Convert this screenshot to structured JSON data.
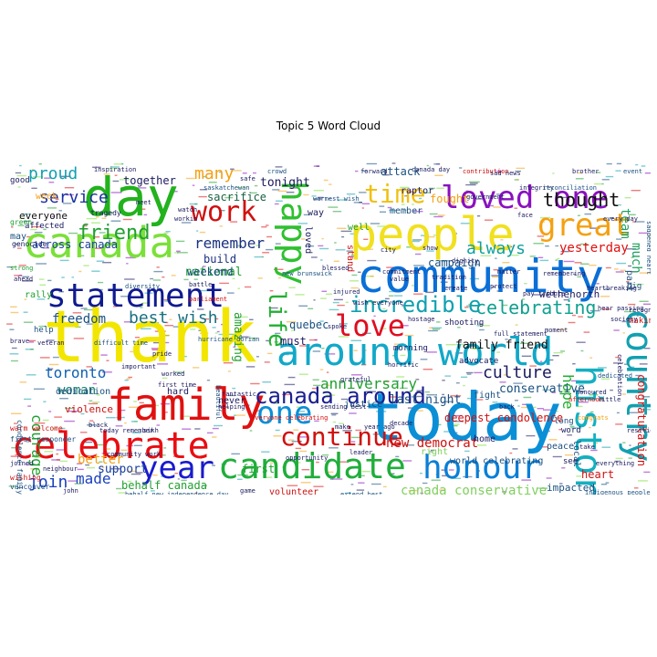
{
  "chart_data": {
    "type": "wordcloud",
    "title": "Topic 5 Word Cloud",
    "words": [
      {
        "text": "thank",
        "weight": 1.0,
        "color": "#f2e600"
      },
      {
        "text": "today",
        "weight": 0.96,
        "color": "#0a8fd6"
      },
      {
        "text": "community",
        "weight": 0.82,
        "color": "#0a6fd6"
      },
      {
        "text": "day",
        "weight": 0.78,
        "color": "#22b21d"
      },
      {
        "text": "canada",
        "weight": 0.76,
        "color": "#7be03a"
      },
      {
        "text": "people",
        "weight": 0.74,
        "color": "#f0e020"
      },
      {
        "text": "around world",
        "weight": 0.7,
        "color": "#12a8c8"
      },
      {
        "text": "family",
        "weight": 0.66,
        "color": "#e01010"
      },
      {
        "text": "celebrate",
        "weight": 0.64,
        "color": "#e80d12"
      },
      {
        "text": "statement",
        "weight": 0.58,
        "color": "#101a8f"
      },
      {
        "text": "candidate",
        "weight": 0.56,
        "color": "#1fae3a"
      },
      {
        "text": "honour",
        "weight": 0.54,
        "color": "#0a7fd6"
      },
      {
        "text": "country",
        "weight": 0.52,
        "color": "#12a0b0"
      },
      {
        "text": "history",
        "weight": 0.5,
        "color": "#13b0c0"
      },
      {
        "text": "happy",
        "weight": 0.5,
        "color": "#2fc030"
      },
      {
        "text": "loved one",
        "weight": 0.5,
        "color": "#8a10c0"
      },
      {
        "text": "year",
        "weight": 0.48,
        "color": "#1a1ad0"
      },
      {
        "text": "great",
        "weight": 0.48,
        "color": "#f5a010"
      },
      {
        "text": "work",
        "weight": 0.46,
        "color": "#d01010"
      },
      {
        "text": "one",
        "weight": 0.44,
        "color": "#0a8fd6"
      },
      {
        "text": "love",
        "weight": 0.42,
        "color": "#e00d20"
      },
      {
        "text": "continue",
        "weight": 0.4,
        "color": "#d01010"
      },
      {
        "text": "time",
        "weight": 0.4,
        "color": "#f0c010"
      },
      {
        "text": "canada around",
        "weight": 0.38,
        "color": "#1a2090"
      },
      {
        "text": "life",
        "weight": 0.36,
        "color": "#20b030"
      },
      {
        "text": "friend",
        "weight": 0.33,
        "color": "#20a030"
      },
      {
        "text": "celebrating",
        "weight": 0.33,
        "color": "#10a090"
      },
      {
        "text": "incredible",
        "weight": 0.33,
        "color": "#10a0b0"
      },
      {
        "text": "thought",
        "weight": 0.32,
        "color": "#101010"
      },
      {
        "text": "always",
        "weight": 0.31,
        "color": "#10a0a0"
      },
      {
        "text": "service",
        "weight": 0.3,
        "color": "#1a30a0"
      },
      {
        "text": "proud",
        "weight": 0.29,
        "color": "#10a0b0"
      },
      {
        "text": "many",
        "weight": 0.29,
        "color": "#f5a010"
      },
      {
        "text": "culture",
        "weight": 0.28,
        "color": "#1a1a60"
      },
      {
        "text": "join",
        "weight": 0.28,
        "color": "#1a40c0"
      },
      {
        "text": "remember",
        "weight": 0.27,
        "color": "#1a3080"
      },
      {
        "text": "best wish",
        "weight": 0.27,
        "color": "#1a7080"
      },
      {
        "text": "courage",
        "weight": 0.26,
        "color": "#20a030"
      },
      {
        "text": "anniversary",
        "weight": 0.26,
        "color": "#20a030"
      },
      {
        "text": "toronto",
        "weight": 0.25,
        "color": "#1060b0"
      },
      {
        "text": "made",
        "weight": 0.25,
        "color": "#1a40c0"
      },
      {
        "text": "hope",
        "weight": 0.25,
        "color": "#20b030"
      },
      {
        "text": "better",
        "weight": 0.24,
        "color": "#f5a010"
      },
      {
        "text": "woman",
        "weight": 0.24,
        "color": "#1a8070"
      },
      {
        "text": "team",
        "weight": 0.24,
        "color": "#20a060"
      },
      {
        "text": "yesterday",
        "weight": 0.23,
        "color": "#e01010"
      },
      {
        "text": "much",
        "weight": 0.23,
        "color": "#20a060"
      },
      {
        "text": "canada conservative",
        "weight": 0.23,
        "color": "#80d060"
      },
      {
        "text": "new democrat",
        "weight": 0.22,
        "color": "#d01010"
      },
      {
        "text": "family friend",
        "weight": 0.22,
        "color": "#101010"
      },
      {
        "text": "national",
        "weight": 0.22,
        "color": "#20a030"
      },
      {
        "text": "amazing",
        "weight": 0.21,
        "color": "#20a030"
      },
      {
        "text": "freedom",
        "weight": 0.21,
        "color": "#1a5080"
      },
      {
        "text": "tonight",
        "weight": 0.21,
        "color": "#1a1a60"
      },
      {
        "text": "together",
        "weight": 0.2,
        "color": "#1a1a60"
      },
      {
        "text": "sacrifice",
        "weight": 0.2,
        "color": "#1a6040"
      },
      {
        "text": "across canada",
        "weight": 0.2,
        "color": "#1a40a0"
      },
      {
        "text": "weekend",
        "weight": 0.19,
        "color": "#1a5080"
      },
      {
        "text": "support",
        "weight": 0.19,
        "color": "#1a40a0"
      },
      {
        "text": "conservative",
        "weight": 0.19,
        "color": "#1a5080"
      },
      {
        "text": "last night",
        "weight": 0.19,
        "color": "#1a5080"
      },
      {
        "text": "deepest condolence",
        "weight": 0.18,
        "color": "#d01010"
      },
      {
        "text": "congratulation",
        "weight": 0.18,
        "color": "#d01010"
      },
      {
        "text": "campaign",
        "weight": 0.18,
        "color": "#1a5080"
      },
      {
        "text": "quebec",
        "weight": 0.18,
        "color": "#1a5080"
      },
      {
        "text": "must",
        "weight": 0.18,
        "color": "#1a1a60"
      },
      {
        "text": "fought",
        "weight": 0.18,
        "color": "#f5a010"
      },
      {
        "text": "attack",
        "weight": 0.18,
        "color": "#1a5080"
      },
      {
        "text": "behalf canada",
        "weight": 0.17,
        "color": "#20a030"
      },
      {
        "text": "heart",
        "weight": 0.17,
        "color": "#d01010"
      },
      {
        "text": "first",
        "weight": 0.17,
        "color": "#20a030"
      },
      {
        "text": "build",
        "weight": 0.17,
        "color": "#1a3080"
      },
      {
        "text": "wethenorth",
        "weight": 0.16,
        "color": "#1a1a60"
      },
      {
        "text": "impacted",
        "weight": 0.16,
        "color": "#1a5080"
      },
      {
        "text": "volunteer",
        "weight": 0.15,
        "color": "#d01010"
      },
      {
        "text": "everyone",
        "weight": 0.15,
        "color": "#101010"
      },
      {
        "text": "violence",
        "weight": 0.15,
        "color": "#d01010"
      },
      {
        "text": "dedication",
        "weight": 0.15,
        "color": "#1a5080"
      },
      {
        "text": "justice",
        "weight": 0.15,
        "color": "#1a5080"
      },
      {
        "text": "member",
        "weight": 0.15,
        "color": "#1a5080"
      },
      {
        "text": "fight",
        "weight": 0.15,
        "color": "#1a5080"
      },
      {
        "text": "world celebrating",
        "weight": 0.14,
        "color": "#1a5080"
      },
      {
        "text": "stand",
        "weight": 0.14,
        "color": "#d01010"
      },
      {
        "text": "well",
        "weight": 0.14,
        "color": "#20a030"
      },
      {
        "text": "raptor",
        "weight": 0.14,
        "color": "#1a1a60"
      },
      {
        "text": "loved",
        "weight": 0.14,
        "color": "#1a1a60"
      },
      {
        "text": "way",
        "weight": 0.14,
        "color": "#1a1a60"
      },
      {
        "text": "hard",
        "weight": 0.14,
        "color": "#1a1a60"
      },
      {
        "text": "never",
        "weight": 0.14,
        "color": "#1a1a60"
      },
      {
        "text": "home",
        "weight": 0.14,
        "color": "#1a1a60"
      },
      {
        "text": "right",
        "weight": 0.14,
        "color": "#80d060"
      },
      {
        "text": "local",
        "weight": 0.14,
        "color": "#1a5080"
      },
      {
        "text": "peace",
        "weight": 0.13,
        "color": "#1a5080"
      },
      {
        "text": "week",
        "weight": 0.13,
        "color": "#f5a010"
      },
      {
        "text": "affected",
        "weight": 0.13,
        "color": "#1a1a60"
      },
      {
        "text": "good",
        "weight": 0.13,
        "color": "#1a1a60"
      },
      {
        "text": "may",
        "weight": 0.13,
        "color": "#1a5080"
      },
      {
        "text": "rally",
        "weight": 0.13,
        "color": "#20a030"
      },
      {
        "text": "help",
        "weight": 0.12,
        "color": "#1a5080"
      },
      {
        "text": "making",
        "weight": 0.12,
        "color": "#d01010"
      },
      {
        "text": "part",
        "weight": 0.12,
        "color": "#1a5080"
      },
      {
        "text": "big",
        "weight": 0.12,
        "color": "#1a5080"
      },
      {
        "text": "see",
        "weight": 0.12,
        "color": "#1a1a60"
      },
      {
        "text": "word",
        "weight": 0.12,
        "color": "#1a1a60"
      },
      {
        "text": "long",
        "weight": 0.12,
        "color": "#1a5080"
      },
      {
        "text": "shooting",
        "weight": 0.12,
        "color": "#1a1a60"
      },
      {
        "text": "morning",
        "weight": 0.12,
        "color": "#1a1a60"
      },
      {
        "text": "advocate",
        "weight": 0.12,
        "color": "#1a1a60"
      },
      {
        "text": "tragedy",
        "weight": 0.12,
        "color": "#1a1a60"
      },
      {
        "text": "green",
        "weight": 0.12,
        "color": "#20a030"
      },
      {
        "text": "genocide",
        "weight": 0.12,
        "color": "#1a1a60"
      },
      {
        "text": "vancouver",
        "weight": 0.12,
        "color": "#1a5080"
      },
      {
        "text": "wishing",
        "weight": 0.12,
        "color": "#d01010"
      },
      {
        "text": "first responder",
        "weight": 0.12,
        "color": "#1a5080"
      },
      {
        "text": "warm welcome",
        "weight": 0.12,
        "color": "#d01010"
      },
      {
        "text": "condolence family",
        "weight": 0.12,
        "color": "#1a5080"
      },
      {
        "text": "independence day",
        "weight": 0.11,
        "color": "#1a5080"
      },
      {
        "text": "extend best",
        "weight": 0.11,
        "color": "#1a5080"
      },
      {
        "text": "everyone celebrating",
        "weight": 0.11,
        "color": "#d01010"
      },
      {
        "text": "difficult time",
        "weight": 0.11,
        "color": "#1a5080"
      },
      {
        "text": "important",
        "weight": 0.11,
        "color": "#1a1a60"
      },
      {
        "text": "beautiful",
        "weight": 0.11,
        "color": "#1a5080"
      },
      {
        "text": "leader",
        "weight": 0.11,
        "color": "#1a1a60"
      },
      {
        "text": "opportunity",
        "weight": 0.11,
        "color": "#1a1a60"
      },
      {
        "text": "sending best",
        "weight": 0.11,
        "color": "#1a1a60"
      },
      {
        "text": "dedicated",
        "weight": 0.11,
        "color": "#1a5080"
      },
      {
        "text": "hear passing",
        "weight": 0.11,
        "color": "#1a1a60"
      },
      {
        "text": "recognize",
        "weight": 0.11,
        "color": "#1a1a60"
      },
      {
        "text": "protect",
        "weight": 0.11,
        "color": "#1a1a60"
      },
      {
        "text": "pay tribute",
        "weight": 0.11,
        "color": "#1a1a60"
      },
      {
        "text": "integrity",
        "weight": 0.11,
        "color": "#1a1a60"
      },
      {
        "text": "contribution",
        "weight": 0.11,
        "color": "#d01010"
      },
      {
        "text": "reconciliation",
        "weight": 0.11,
        "color": "#1a5080"
      },
      {
        "text": "event",
        "weight": 0.11,
        "color": "#1a5080"
      },
      {
        "text": "crowd",
        "weight": 0.11,
        "color": "#1a5080"
      },
      {
        "text": "parliament",
        "weight": 0.11,
        "color": "#d01010"
      },
      {
        "text": "warmest wish",
        "weight": 0.11,
        "color": "#1a5080"
      },
      {
        "text": "new brunswick",
        "weight": 0.11,
        "color": "#1a5080"
      },
      {
        "text": "wish everyone",
        "weight": 0.11,
        "color": "#1a1a60"
      },
      {
        "text": "inspiration",
        "weight": 0.1,
        "color": "#1a1a60"
      },
      {
        "text": "saskatchewan",
        "weight": 0.1,
        "color": "#1a5080"
      },
      {
        "text": "diversity",
        "weight": 0.1,
        "color": "#1a5080"
      },
      {
        "text": "battle",
        "weight": 0.1,
        "color": "#1a1a60"
      },
      {
        "text": "hurricane dorian",
        "weight": 0.1,
        "color": "#1a5080"
      },
      {
        "text": "brave",
        "weight": 0.1,
        "color": "#1a1a60"
      },
      {
        "text": "joined",
        "weight": 0.1,
        "color": "#1a1a60"
      },
      {
        "text": "neighbour",
        "weight": 0.1,
        "color": "#1a1a60"
      },
      {
        "text": "john",
        "weight": 0.1,
        "color": "#1a1a60"
      },
      {
        "text": "behalf new",
        "weight": 0.1,
        "color": "#1a5080"
      },
      {
        "text": "game",
        "weight": 0.1,
        "color": "#1a1a60"
      },
      {
        "text": "decade",
        "weight": 0.1,
        "color": "#1a1a60"
      },
      {
        "text": "year ago",
        "weight": 0.1,
        "color": "#1a1a60"
      },
      {
        "text": "make",
        "weight": 0.1,
        "color": "#1a1a60"
      },
      {
        "text": "value",
        "weight": 0.1,
        "color": "#1a1a60"
      },
      {
        "text": "city",
        "weight": 0.1,
        "color": "#1a1a60"
      },
      {
        "text": "show",
        "weight": 0.1,
        "color": "#1a1a60"
      },
      {
        "text": "face",
        "weight": 0.1,
        "color": "#1a1a60"
      },
      {
        "text": "indigenous people",
        "weight": 0.1,
        "color": "#1a5080"
      },
      {
        "text": "congrats",
        "weight": 0.1,
        "color": "#f5a010"
      },
      {
        "text": "afternoon",
        "weight": 0.1,
        "color": "#d01010"
      },
      {
        "text": "everything",
        "weight": 0.1,
        "color": "#1a1a60"
      },
      {
        "text": "take",
        "weight": 0.1,
        "color": "#1a1a60"
      },
      {
        "text": "saddened heart",
        "weight": 0.1,
        "color": "#1a5080"
      },
      {
        "text": "every day",
        "weight": 0.1,
        "color": "#1a1a60"
      },
      {
        "text": "moment",
        "weight": 0.1,
        "color": "#1a1a60"
      },
      {
        "text": "watch",
        "weight": 0.1,
        "color": "#1a1a60"
      },
      {
        "text": "workin",
        "weight": 0.1,
        "color": "#1a1a60"
      },
      {
        "text": "injured",
        "weight": 0.1,
        "color": "#1a1a60"
      },
      {
        "text": "full statement",
        "weight": 0.1,
        "color": "#1a1a60"
      },
      {
        "text": "today remember",
        "weight": 0.1,
        "color": "#1a1a60"
      },
      {
        "text": "veteran",
        "weight": 0.1,
        "color": "#1a1a60"
      },
      {
        "text": "black",
        "weight": 0.1,
        "color": "#1a1a60"
      },
      {
        "text": "community work",
        "weight": 0.1,
        "color": "#1a1a60"
      },
      {
        "text": "sikh",
        "weight": 0.1,
        "color": "#1a1a60"
      },
      {
        "text": "dignity",
        "weight": 0.1,
        "color": "#1a1a60"
      },
      {
        "text": "government",
        "weight": 0.1,
        "color": "#1a1a60"
      },
      {
        "text": "resilience",
        "weight": 0.1,
        "color": "#1a1a60"
      },
      {
        "text": "society",
        "weight": 0.1,
        "color": "#1a1a60"
      },
      {
        "text": "grateful",
        "weight": 0.1,
        "color": "#1a1a60"
      },
      {
        "text": "commitment",
        "weight": 0.1,
        "color": "#1a1a60"
      },
      {
        "text": "spoke",
        "weight": 0.1,
        "color": "#1a1a60"
      },
      {
        "text": "hostage",
        "weight": 0.1,
        "color": "#1a1a60"
      },
      {
        "text": "tradition",
        "weight": 0.1,
        "color": "#1a1a60"
      },
      {
        "text": "sad news",
        "weight": 0.1,
        "color": "#1a1a60"
      },
      {
        "text": "ahead",
        "weight": 0.1,
        "color": "#1a1a60"
      },
      {
        "text": "worked",
        "weight": 0.1,
        "color": "#1a1a60"
      },
      {
        "text": "celebration",
        "weight": 0.1,
        "color": "#1a1a60"
      },
      {
        "text": "pride",
        "weight": 0.1,
        "color": "#1a1a60"
      },
      {
        "text": "fantastic",
        "weight": 0.1,
        "color": "#1a1a60"
      },
      {
        "text": "first time",
        "weight": 0.1,
        "color": "#1a1a60"
      },
      {
        "text": "blessed",
        "weight": 0.1,
        "color": "#1a1a60"
      },
      {
        "text": "horrific",
        "weight": 0.1,
        "color": "#1a1a60"
      },
      {
        "text": "strong",
        "weight": 0.1,
        "color": "#20a030"
      },
      {
        "text": "meet",
        "weight": 0.1,
        "color": "#1a1a60"
      },
      {
        "text": "safe",
        "weight": 0.1,
        "color": "#1a1a60"
      },
      {
        "text": "forward",
        "weight": 0.1,
        "color": "#1a1a60"
      },
      {
        "text": "matter",
        "weight": 0.1,
        "color": "#1a1a60"
      },
      {
        "text": "helping",
        "weight": 0.1,
        "color": "#1a1a60"
      },
      {
        "text": "create",
        "weight": 0.1,
        "color": "#1a1a60"
      },
      {
        "text": "little",
        "weight": 0.1,
        "color": "#1a1a60"
      },
      {
        "text": "back",
        "weight": 0.1,
        "color": "#1a1a60"
      },
      {
        "text": "remembering",
        "weight": 0.1,
        "color": "#1a1a60"
      },
      {
        "text": "honoured",
        "weight": 0.1,
        "color": "#1a1a60"
      },
      {
        "text": "canada day",
        "weight": 0.1,
        "color": "#1a1a60"
      },
      {
        "text": "brother",
        "weight": 0.1,
        "color": "#1a1a60"
      },
      {
        "text": "heartbreaking",
        "weight": 0.1,
        "color": "#1a1a60"
      }
    ]
  }
}
